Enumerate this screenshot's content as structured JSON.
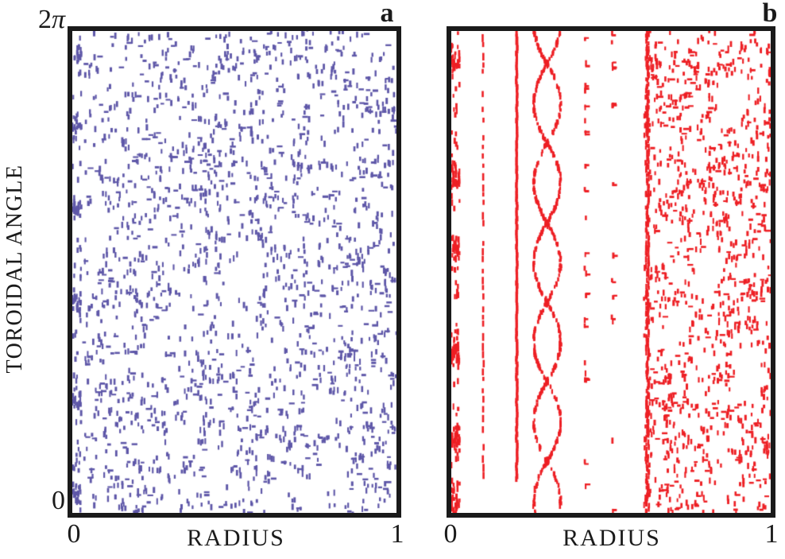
{
  "figure": {
    "background": "#ffffff",
    "axis_color": "#1a1a1a",
    "text_color": "#1a1a1a"
  },
  "y_axis": {
    "label": "TOROIDAL ANGLE",
    "tick_top_num": "2",
    "tick_top_pi": "π",
    "tick_bottom": "0"
  },
  "panels": [
    {
      "label": "a",
      "xlabel": "RADIUS",
      "x_tick_left": "0",
      "x_tick_right": "1",
      "marker_color": "#5e57a8"
    },
    {
      "label": "b",
      "xlabel": "RADIUS",
      "x_tick_left": "0",
      "x_tick_right": "1",
      "marker_color": "#ed1f24"
    }
  ],
  "chart_data": [
    {
      "type": "scatter",
      "panel": "a",
      "description": "Poincare puncture plot: fully chaotic sea of short dash markers filling the whole radius, with a dense clumped column hugging the left (r=0) edge",
      "marker": "short-dash",
      "color": "#5e57a8",
      "xlabel": "RADIUS",
      "ylabel": "TOROIDAL ANGLE",
      "xlim": [
        0,
        1
      ],
      "ylim_labels": [
        "0",
        "2π"
      ],
      "grid": false,
      "seed": 42,
      "features": [
        {
          "kind": "edge-column",
          "x_range": [
            0.0,
            0.028
          ],
          "count": 170,
          "blob_centers": [
            0.05,
            0.19,
            0.37,
            0.56,
            0.77,
            0.96
          ],
          "blob_sigma": 0.03,
          "blob_fraction": 0.6
        },
        {
          "kind": "uniform-scatter",
          "x_range": [
            0.035,
            1.0
          ],
          "count": 1500,
          "companion_prob": 0.3,
          "voids": [
            {
              "x": 0.3,
              "y": 0.2,
              "rx": 0.035,
              "ry": 0.04
            },
            {
              "x": 0.55,
              "y": 0.48,
              "rx": 0.04,
              "ry": 0.045
            },
            {
              "x": 0.25,
              "y": 0.67,
              "rx": 0.035,
              "ry": 0.04
            },
            {
              "x": 0.75,
              "y": 0.78,
              "rx": 0.035,
              "ry": 0.04
            },
            {
              "x": 0.45,
              "y": 0.9,
              "rx": 0.04,
              "ry": 0.035
            }
          ]
        }
      ]
    },
    {
      "type": "scatter",
      "panel": "b",
      "description": "Poincare puncture plot: nested flux surfaces (dashed line at r≈0.10, solid line at r≈0.21), a chain of ~6 magnetic islands at r≈0.30, sparse surfaces at r≈0.42 and r≈0.50, and a chaotic edge band from r≈0.61 to r=1 bounded by a dense jittery line",
      "marker": "short-dash",
      "color": "#ed1f24",
      "xlabel": "RADIUS",
      "ylabel": "TOROIDAL ANGLE",
      "xlim": [
        0,
        1
      ],
      "ylim_labels": [
        "0",
        "2π"
      ],
      "grid": false,
      "seed": 7,
      "features": [
        {
          "kind": "edge-column",
          "x_range": [
            0.0,
            0.026
          ],
          "count": 260,
          "blob_centers": [
            0.06,
            0.3,
            0.45,
            0.67,
            0.85,
            0.96
          ],
          "blob_sigma": 0.04,
          "blob_fraction": 0.65
        },
        {
          "kind": "dashed-line",
          "x": 0.1,
          "count": 48,
          "y_range": [
            0.0,
            0.93
          ],
          "skip_prob": 0.15
        },
        {
          "kind": "solid-line",
          "x": 0.205,
          "count": 160,
          "y_range": [
            0.0,
            0.93
          ]
        },
        {
          "kind": "island-chain",
          "x": 0.3,
          "half_width": 0.042,
          "period": 0.165,
          "first_neck": 0.068,
          "count": 620
        },
        {
          "kind": "sparse-line",
          "x": 0.42,
          "count": 22
        },
        {
          "kind": "sparse-line",
          "x": 0.505,
          "count": 14
        },
        {
          "kind": "boundary-line",
          "x": 0.614,
          "count": 230
        },
        {
          "kind": "chaotic-band",
          "x_range": [
            0.625,
            1.0
          ],
          "count": 850,
          "companion_prob": 0.35,
          "voids": [
            {
              "x": 0.88,
              "y": 0.14,
              "rx": 0.05,
              "ry": 0.05
            },
            {
              "x": 0.8,
              "y": 0.5,
              "rx": 0.04,
              "ry": 0.05
            },
            {
              "x": 0.93,
              "y": 0.72,
              "rx": 0.045,
              "ry": 0.05
            },
            {
              "x": 0.7,
              "y": 0.62,
              "rx": 0.035,
              "ry": 0.045
            },
            {
              "x": 0.76,
              "y": 0.25,
              "rx": 0.035,
              "ry": 0.04
            },
            {
              "x": 0.87,
              "y": 0.92,
              "rx": 0.04,
              "ry": 0.04
            }
          ]
        }
      ]
    }
  ]
}
